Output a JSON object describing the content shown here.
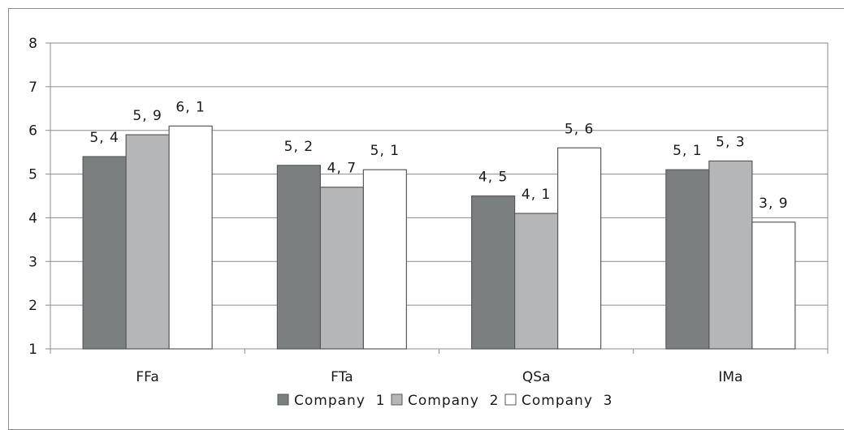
{
  "chart_data": {
    "type": "bar",
    "categories": [
      "FFa",
      "FTa",
      "QSa",
      "IMa"
    ],
    "series": [
      {
        "name": "Company  1",
        "values": [
          5.4,
          5.2,
          4.5,
          5.1
        ],
        "labels": [
          "5, 4",
          "5, 2",
          "4, 5",
          "5, 1"
        ],
        "color": "#7a7f80"
      },
      {
        "name": "Company  2",
        "values": [
          5.9,
          4.7,
          4.1,
          5.3
        ],
        "labels": [
          "5, 9",
          "4, 7",
          "4, 1",
          "5, 3"
        ],
        "color": "#b4b6b8"
      },
      {
        "name": "Company  3",
        "values": [
          6.1,
          5.1,
          5.6,
          3.9
        ],
        "labels": [
          "6, 1",
          "5, 1",
          "5, 6",
          "3, 9"
        ],
        "color": "#ffffff"
      }
    ],
    "yticks": [
      "1",
      "2",
      "3",
      "4",
      "5",
      "6",
      "7",
      "8"
    ],
    "ylim": [
      1,
      8
    ],
    "grid": true,
    "legend_position": "bottom",
    "title": "",
    "xlabel": "",
    "ylabel": ""
  }
}
